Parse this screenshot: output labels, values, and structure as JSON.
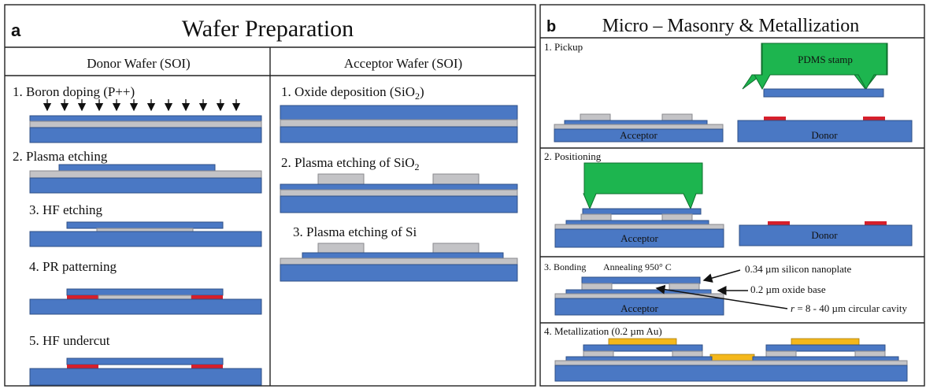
{
  "panel_a": {
    "letter": "a",
    "title": "Wafer Preparation",
    "donor": {
      "header": "Donor Wafer (SOI)",
      "steps": [
        "1. Boron doping (P++)",
        "2. Plasma etching",
        "3. HF etching",
        "4. PR patterning",
        "5. HF undercut"
      ]
    },
    "acceptor": {
      "header": "Acceptor Wafer (SOI)",
      "step1_pre": "1. Oxide deposition (SiO",
      "step1_sub": "2",
      "step1_post": ")",
      "step2_pre": "2. Plasma etching of SiO",
      "step2_sub": "2",
      "step3": "3. Plasma etching of Si"
    }
  },
  "panel_b": {
    "letter": "b",
    "title": "Micro – Masonry & Metallization",
    "step1": "1. Pickup",
    "step2": "2. Positioning",
    "step3": "3. Bonding",
    "annealing": "Annealing 950° C",
    "step4": "4. Metallization (0.2 µm Au)",
    "pdms_label": "PDMS stamp",
    "acceptor_label": "Acceptor",
    "donor_label": "Donor",
    "annotations": {
      "nanoplate": "0.34 µm silicon nanoplate",
      "oxide_base": "0.2   µm oxide base",
      "cavity_var": "r",
      "cavity_text": " = 8 - 40 µm circular cavity"
    }
  },
  "colors": {
    "silicon": "#4a78c4",
    "oxide": "#c3c3c6",
    "photoresist": "#d61f2b",
    "gold": "#f4b81c",
    "pdms": "#1db54f"
  }
}
